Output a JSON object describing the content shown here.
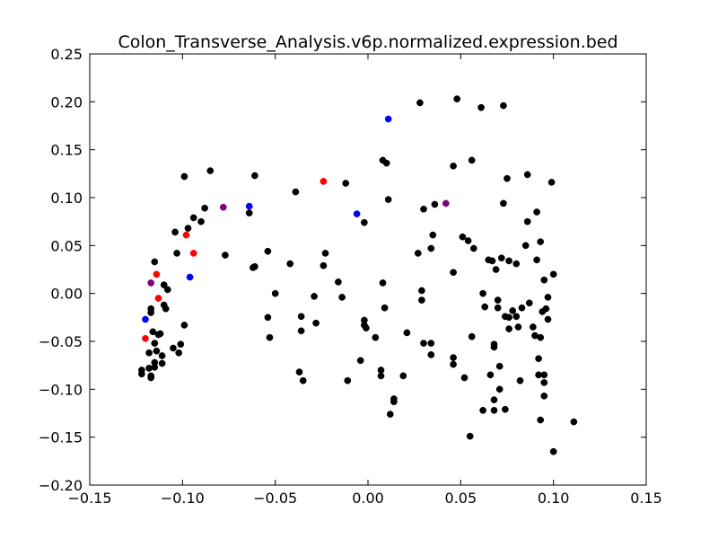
{
  "chart_data": {
    "type": "scatter",
    "title": "Colon_Transverse_Analysis.v6p.normalized.expression.bed",
    "xlabel": "",
    "ylabel": "",
    "xlim": [
      -0.15,
      0.15
    ],
    "ylim": [
      -0.2,
      0.25
    ],
    "xticks": [
      "−0.15",
      "−0.10",
      "−0.05",
      "0.00",
      "0.05",
      "0.10",
      "0.15"
    ],
    "yticks": [
      "−0.20",
      "−0.15",
      "−0.10",
      "−0.05",
      "0.00",
      "0.05",
      "0.10",
      "0.15",
      "0.20",
      "0.25"
    ],
    "grid": false,
    "series": [
      {
        "color": "#000000",
        "points": [
          [
            -0.122,
            -0.08
          ],
          [
            -0.122,
            -0.084
          ],
          [
            -0.118,
            -0.078
          ],
          [
            -0.117,
            -0.088
          ],
          [
            -0.117,
            -0.086
          ],
          [
            -0.118,
            -0.062
          ],
          [
            -0.117,
            -0.02
          ],
          [
            -0.117,
            -0.016
          ],
          [
            -0.116,
            -0.04
          ],
          [
            -0.115,
            0.033
          ],
          [
            -0.115,
            -0.072
          ],
          [
            -0.115,
            -0.077
          ],
          [
            -0.115,
            -0.052
          ],
          [
            -0.114,
            -0.06
          ],
          [
            -0.113,
            -0.043
          ],
          [
            -0.112,
            -0.042
          ],
          [
            -0.111,
            -0.065
          ],
          [
            -0.111,
            -0.073
          ],
          [
            -0.11,
            0.009
          ],
          [
            -0.11,
            -0.012
          ],
          [
            -0.109,
            -0.016
          ],
          [
            -0.108,
            0.004
          ],
          [
            -0.105,
            -0.057
          ],
          [
            -0.104,
            0.064
          ],
          [
            -0.103,
            0.042
          ],
          [
            -0.102,
            -0.062
          ],
          [
            -0.101,
            -0.053
          ],
          [
            -0.099,
            -0.033
          ],
          [
            -0.099,
            0.122
          ],
          [
            -0.097,
            0.068
          ],
          [
            -0.094,
            0.079
          ],
          [
            -0.09,
            0.075
          ],
          [
            -0.088,
            0.089
          ],
          [
            -0.085,
            0.128
          ],
          [
            -0.077,
            0.04
          ],
          [
            -0.064,
            0.084
          ],
          [
            -0.062,
            0.027
          ],
          [
            -0.061,
            0.028
          ],
          [
            -0.061,
            0.123
          ],
          [
            -0.054,
            0.044
          ],
          [
            -0.054,
            -0.025
          ],
          [
            -0.053,
            -0.046
          ],
          [
            -0.05,
            0.0
          ],
          [
            -0.042,
            0.031
          ],
          [
            -0.039,
            0.106
          ],
          [
            -0.037,
            -0.082
          ],
          [
            -0.036,
            -0.024
          ],
          [
            -0.036,
            -0.039
          ],
          [
            -0.035,
            -0.091
          ],
          [
            -0.029,
            -0.003
          ],
          [
            -0.028,
            -0.031
          ],
          [
            -0.024,
            0.029
          ],
          [
            -0.023,
            0.042
          ],
          [
            -0.016,
            0.012
          ],
          [
            -0.014,
            -0.004
          ],
          [
            -0.012,
            0.115
          ],
          [
            -0.011,
            -0.091
          ],
          [
            -0.004,
            -0.07
          ],
          [
            -0.002,
            0.074
          ],
          [
            -0.002,
            -0.028
          ],
          [
            -0.002,
            -0.033
          ],
          [
            -0.001,
            -0.036
          ],
          [
            0.004,
            -0.046
          ],
          [
            0.007,
            -0.08
          ],
          [
            0.007,
            -0.086
          ],
          [
            0.008,
            0.139
          ],
          [
            0.008,
            0.011
          ],
          [
            0.009,
            -0.015
          ],
          [
            0.01,
            0.136
          ],
          [
            0.011,
            0.098
          ],
          [
            0.012,
            -0.126
          ],
          [
            0.014,
            -0.11
          ],
          [
            0.014,
            -0.113
          ],
          [
            0.019,
            -0.086
          ],
          [
            0.021,
            -0.041
          ],
          [
            0.027,
            0.042
          ],
          [
            0.028,
            0.199
          ],
          [
            0.029,
            0.003
          ],
          [
            0.029,
            -0.007
          ],
          [
            0.03,
            0.088
          ],
          [
            0.03,
            -0.052
          ],
          [
            0.034,
            0.047
          ],
          [
            0.034,
            -0.052
          ],
          [
            0.034,
            -0.064
          ],
          [
            0.035,
            0.061
          ],
          [
            0.036,
            0.093
          ],
          [
            0.046,
            0.133
          ],
          [
            0.046,
            0.022
          ],
          [
            0.046,
            -0.067
          ],
          [
            0.046,
            -0.074
          ],
          [
            0.048,
            0.203
          ],
          [
            0.051,
            0.059
          ],
          [
            0.052,
            -0.088
          ],
          [
            0.054,
            0.055
          ],
          [
            0.055,
            -0.149
          ],
          [
            0.056,
            0.139
          ],
          [
            0.056,
            -0.045
          ],
          [
            0.057,
            0.047
          ],
          [
            0.061,
            0.194
          ],
          [
            0.062,
            0.0
          ],
          [
            0.062,
            -0.122
          ],
          [
            0.063,
            -0.014
          ],
          [
            0.065,
            0.035
          ],
          [
            0.066,
            -0.085
          ],
          [
            0.067,
            0.034
          ],
          [
            0.068,
            -0.053
          ],
          [
            0.068,
            -0.056
          ],
          [
            0.068,
            -0.111
          ],
          [
            0.068,
            -0.122
          ],
          [
            0.069,
            0.025
          ],
          [
            0.07,
            -0.015
          ],
          [
            0.07,
            -0.007
          ],
          [
            0.071,
            -0.076
          ],
          [
            0.071,
            -0.1
          ],
          [
            0.072,
            0.037
          ],
          [
            0.073,
            0.196
          ],
          [
            0.073,
            0.094
          ],
          [
            0.074,
            -0.024
          ],
          [
            0.074,
            -0.121
          ],
          [
            0.075,
            0.12
          ],
          [
            0.076,
            -0.025
          ],
          [
            0.076,
            -0.037
          ],
          [
            0.076,
            0.034
          ],
          [
            0.078,
            -0.018
          ],
          [
            0.08,
            -0.024
          ],
          [
            0.08,
            0.031
          ],
          [
            0.081,
            -0.035
          ],
          [
            0.082,
            -0.091
          ],
          [
            0.083,
            -0.015
          ],
          [
            0.085,
            0.05
          ],
          [
            0.086,
            0.124
          ],
          [
            0.086,
            0.075
          ],
          [
            0.087,
            -0.01
          ],
          [
            0.089,
            -0.035
          ],
          [
            0.09,
            -0.044
          ],
          [
            0.091,
            0.085
          ],
          [
            0.091,
            0.035
          ],
          [
            0.092,
            -0.068
          ],
          [
            0.092,
            -0.085
          ],
          [
            0.093,
            0.054
          ],
          [
            0.093,
            -0.132
          ],
          [
            0.093,
            -0.046
          ],
          [
            0.094,
            -0.019
          ],
          [
            0.095,
            0.014
          ],
          [
            0.095,
            -0.085
          ],
          [
            0.095,
            -0.093
          ],
          [
            0.095,
            -0.107
          ],
          [
            0.096,
            -0.016
          ],
          [
            0.097,
            -0.004
          ],
          [
            0.097,
            -0.027
          ],
          [
            0.099,
            0.116
          ],
          [
            0.1,
            0.02
          ],
          [
            0.1,
            -0.165
          ],
          [
            0.111,
            -0.134
          ]
        ]
      },
      {
        "color": "#ff0000",
        "points": [
          [
            -0.12,
            -0.047
          ],
          [
            -0.114,
            0.02
          ],
          [
            -0.113,
            -0.005
          ],
          [
            -0.098,
            0.061
          ],
          [
            -0.094,
            0.042
          ],
          [
            -0.024,
            0.117
          ]
        ]
      },
      {
        "color": "#0000ff",
        "points": [
          [
            -0.12,
            -0.027
          ],
          [
            -0.096,
            0.017
          ],
          [
            -0.064,
            0.091
          ],
          [
            -0.006,
            0.083
          ],
          [
            0.011,
            0.182
          ]
        ]
      },
      {
        "color": "#800080",
        "points": [
          [
            -0.117,
            0.011
          ],
          [
            -0.078,
            0.09
          ],
          [
            0.042,
            0.094
          ]
        ]
      }
    ]
  }
}
